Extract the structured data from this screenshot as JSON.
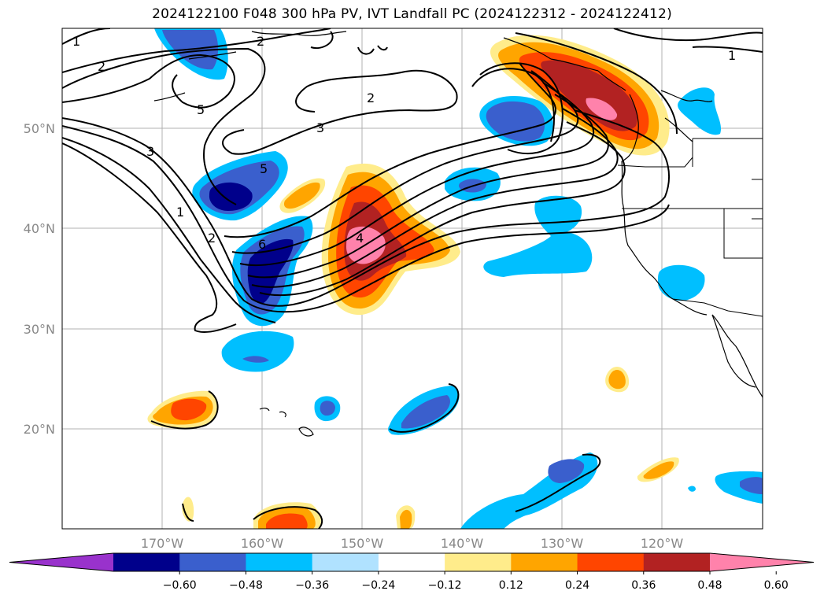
{
  "title": "2024122100 F048 300 hPa PV, IVT Landfall PC (2024122312 - 2024122412)",
  "lon_ticks": [
    "170°W",
    "160°W",
    "150°W",
    "140°W",
    "130°W",
    "120°W"
  ],
  "lat_ticks": [
    "20°N",
    "30°N",
    "40°N",
    "50°N"
  ],
  "colorbar": {
    "colors": [
      "#9932cc",
      "#00008b",
      "#3a5fcd",
      "#00bfff",
      "#b0e2ff",
      "#ffffff",
      "#ffec8b",
      "#ffa500",
      "#ff4500",
      "#b22222",
      "#ff82ab"
    ],
    "labels": [
      "−0.60",
      "−0.48",
      "−0.36",
      "−0.24",
      "−0.12",
      "0.12",
      "0.24",
      "0.36",
      "0.48",
      "0.60"
    ]
  },
  "contour_labels": [
    "1",
    "2",
    "2",
    "5",
    "3",
    "2",
    "3",
    "5",
    "1",
    "2",
    "6",
    "4",
    "1"
  ]
}
